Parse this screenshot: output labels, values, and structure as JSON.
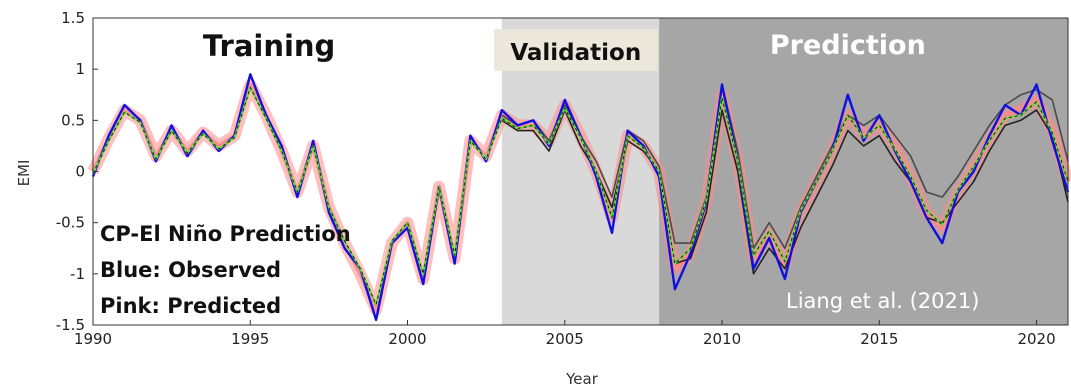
{
  "chart_data": {
    "type": "line",
    "ylabel": "EMI",
    "xlabel": "Year",
    "xlim": [
      1990,
      2021
    ],
    "ylim": [
      -1.5,
      1.5
    ],
    "x_ticks": [
      "1990",
      "1995",
      "2000",
      "2005",
      "2010",
      "2015",
      "2020"
    ],
    "y_ticks": [
      "1.5",
      "1",
      "0.5",
      "0",
      "-0.5",
      "-1",
      "-1.5"
    ],
    "periods": [
      {
        "label": "Training",
        "start": 1990,
        "end": 2003,
        "color": "#ffffff"
      },
      {
        "label": "Validation",
        "start": 2003,
        "end": 2008,
        "color": "#d9d9d9"
      },
      {
        "label": "Prediction",
        "start": 2008,
        "end": 2021,
        "color": "#a6a6a6"
      }
    ],
    "annotations": [
      "CP-El Niño Prediction",
      "Blue: Observed",
      "Pink: Predicted"
    ],
    "citation": "Liang et al. (2021)",
    "series": [
      {
        "color": "#1010e0",
        "x": [
          1990.0,
          1990.5,
          1991.0,
          1991.5,
          1992.0,
          1992.5,
          1993.0,
          1993.5,
          1994.0,
          1994.5,
          1995.0,
          1995.5,
          1996.0,
          1996.5,
          1997.0,
          1997.5,
          1998.0,
          1998.5,
          1999.0,
          1999.5,
          2000.0,
          2000.5,
          2001.0,
          2001.5,
          2002.0,
          2002.5,
          2003.0,
          2003.5,
          2004.0,
          2004.5,
          2005.0,
          2005.5,
          2006.0,
          2006.5,
          2007.0,
          2007.5,
          2008.0,
          2008.5,
          2009.0,
          2009.5,
          2010.0,
          2010.5,
          2011.0,
          2011.5,
          2012.0,
          2012.5,
          2013.0,
          2013.5,
          2014.0,
          2014.5,
          2015.0,
          2015.5,
          2016.0,
          2016.5,
          2017.0,
          2017.5,
          2018.0,
          2018.5,
          2019.0,
          2019.5,
          2020.0,
          2020.5,
          2021.0
        ],
        "values": [
          -0.05,
          0.35,
          0.65,
          0.5,
          0.1,
          0.45,
          0.15,
          0.4,
          0.2,
          0.35,
          0.95,
          0.55,
          0.25,
          -0.25,
          0.3,
          -0.4,
          -0.75,
          -0.95,
          -1.45,
          -0.7,
          -0.55,
          -1.1,
          -0.15,
          -0.9,
          0.35,
          0.1,
          0.6,
          0.45,
          0.5,
          0.25,
          0.7,
          0.35,
          -0.05,
          -0.6,
          0.4,
          0.25,
          -0.05,
          -1.15,
          -0.8,
          -0.3,
          0.85,
          0.1,
          -0.95,
          -0.65,
          -1.05,
          -0.4,
          -0.1,
          0.2,
          0.75,
          0.3,
          0.55,
          0.2,
          -0.1,
          -0.45,
          -0.7,
          -0.2,
          0.0,
          0.35,
          0.65,
          0.55,
          0.85,
          0.3,
          -0.2
        ]
      },
      {
        "color": "#ff8a8a",
        "x": [
          1990.0,
          1990.5,
          1991.0,
          1991.5,
          1992.0,
          1992.5,
          1993.0,
          1993.5,
          1994.0,
          1994.5,
          1995.0,
          1995.5,
          1996.0,
          1996.5,
          1997.0,
          1997.5,
          1998.0,
          1998.5,
          1999.0,
          1999.5,
          2000.0,
          2000.5,
          2001.0,
          2001.5,
          2002.0,
          2002.5,
          2003.0,
          2003.5,
          2004.0,
          2004.5,
          2005.0,
          2005.5,
          2006.0,
          2006.5,
          2007.0,
          2007.5,
          2008.0,
          2008.5,
          2009.0,
          2009.5,
          2010.0,
          2010.5,
          2011.0,
          2011.5,
          2012.0,
          2012.5,
          2013.0,
          2013.5,
          2014.0,
          2014.5,
          2015.0,
          2015.5,
          2016.0,
          2016.5,
          2017.0,
          2017.5,
          2018.0,
          2018.5,
          2019.0,
          2019.5,
          2020.0,
          2020.5,
          2021.0
        ],
        "values": [
          0.0,
          0.32,
          0.6,
          0.5,
          0.15,
          0.4,
          0.2,
          0.38,
          0.25,
          0.35,
          0.85,
          0.55,
          0.2,
          -0.2,
          0.25,
          -0.35,
          -0.7,
          -1.0,
          -1.35,
          -0.7,
          -0.5,
          -1.05,
          -0.15,
          -0.85,
          0.3,
          0.15,
          0.55,
          0.45,
          0.45,
          0.3,
          0.65,
          0.35,
          0.0,
          -0.45,
          0.35,
          0.25,
          0.0,
          -0.95,
          -0.8,
          -0.3,
          0.75,
          0.1,
          -0.85,
          -0.6,
          -0.9,
          -0.4,
          -0.1,
          0.2,
          0.55,
          0.35,
          0.45,
          0.25,
          -0.05,
          -0.4,
          -0.55,
          -0.2,
          0.05,
          0.3,
          0.55,
          0.6,
          0.7,
          0.4,
          -0.1
        ]
      },
      {
        "color": "#222222",
        "x": [
          2003.0,
          2003.5,
          2004.0,
          2004.5,
          2005.0,
          2005.5,
          2006.0,
          2006.5,
          2007.0,
          2007.5,
          2008.0,
          2008.5,
          2009.0,
          2009.5,
          2010.0,
          2010.5,
          2011.0,
          2011.5,
          2012.0,
          2012.5,
          2013.0,
          2013.5,
          2014.0,
          2014.5,
          2015.0,
          2015.5,
          2016.0,
          2016.5,
          2017.0,
          2017.5,
          2018.0,
          2018.5,
          2019.0,
          2019.5,
          2020.0,
          2020.5,
          2021.0
        ],
        "values": [
          0.5,
          0.4,
          0.4,
          0.2,
          0.6,
          0.25,
          0.0,
          -0.35,
          0.3,
          0.2,
          0.0,
          -0.9,
          -0.85,
          -0.4,
          0.6,
          0.0,
          -1.0,
          -0.75,
          -0.95,
          -0.55,
          -0.25,
          0.05,
          0.4,
          0.25,
          0.35,
          0.1,
          -0.1,
          -0.45,
          -0.5,
          -0.3,
          -0.1,
          0.2,
          0.45,
          0.5,
          0.6,
          0.35,
          -0.3
        ]
      },
      {
        "color": "#4a4a4a",
        "x": [
          2003.0,
          2003.5,
          2004.0,
          2004.5,
          2005.0,
          2005.5,
          2006.0,
          2006.5,
          2007.0,
          2007.5,
          2008.0,
          2008.5,
          2009.0,
          2009.5,
          2010.0,
          2010.5,
          2011.0,
          2011.5,
          2012.0,
          2012.5,
          2013.0,
          2013.5,
          2014.0,
          2014.5,
          2015.0,
          2015.5,
          2016.0,
          2016.5,
          2017.0,
          2017.5,
          2018.0,
          2018.5,
          2019.0,
          2019.5,
          2020.0,
          2020.5,
          2021.0
        ],
        "values": [
          0.55,
          0.45,
          0.5,
          0.3,
          0.65,
          0.35,
          0.1,
          -0.25,
          0.4,
          0.3,
          0.05,
          -0.7,
          -0.7,
          -0.25,
          0.85,
          0.2,
          -0.75,
          -0.5,
          -0.75,
          -0.35,
          -0.05,
          0.25,
          0.55,
          0.45,
          0.55,
          0.35,
          0.15,
          -0.2,
          -0.25,
          -0.05,
          0.2,
          0.45,
          0.65,
          0.75,
          0.8,
          0.7,
          0.1
        ]
      },
      {
        "color": "#66e03a",
        "x": [
          1990.0,
          1990.5,
          1991.0,
          1991.5,
          1992.0,
          1992.5,
          1993.0,
          1993.5,
          1994.0,
          1994.5,
          1995.0,
          1995.5,
          1996.0,
          1996.5,
          1997.0,
          1997.5,
          1998.0,
          1998.5,
          1999.0,
          1999.5,
          2000.0,
          2000.5,
          2001.0,
          2001.5,
          2002.0,
          2002.5,
          2003.0,
          2003.5,
          2004.0,
          2004.5,
          2005.0,
          2005.5,
          2006.0,
          2006.5,
          2007.0,
          2007.5,
          2008.0,
          2008.5,
          2009.0,
          2009.5,
          2010.0,
          2010.5,
          2011.0,
          2011.5,
          2012.0,
          2012.5,
          2013.0,
          2013.5,
          2014.0,
          2014.5,
          2015.0,
          2015.5,
          2016.0,
          2016.5,
          2017.0,
          2017.5,
          2018.0,
          2018.5,
          2019.0,
          2019.5,
          2020.0,
          2020.5,
          2021.0
        ],
        "values": [
          -0.02,
          0.3,
          0.58,
          0.48,
          0.12,
          0.4,
          0.18,
          0.37,
          0.22,
          0.33,
          0.82,
          0.52,
          0.2,
          -0.2,
          0.25,
          -0.35,
          -0.68,
          -0.95,
          -1.3,
          -0.68,
          -0.5,
          -1.0,
          -0.15,
          -0.82,
          0.3,
          0.12,
          0.52,
          0.42,
          0.45,
          0.27,
          0.62,
          0.33,
          0.0,
          -0.45,
          0.35,
          0.23,
          0.0,
          -0.9,
          -0.75,
          -0.28,
          0.72,
          0.1,
          -0.82,
          -0.58,
          -0.88,
          -0.38,
          -0.1,
          0.2,
          0.55,
          0.33,
          0.45,
          0.22,
          -0.05,
          -0.38,
          -0.52,
          -0.18,
          0.05,
          0.3,
          0.52,
          0.55,
          0.68,
          0.38,
          -0.1
        ]
      }
    ]
  }
}
